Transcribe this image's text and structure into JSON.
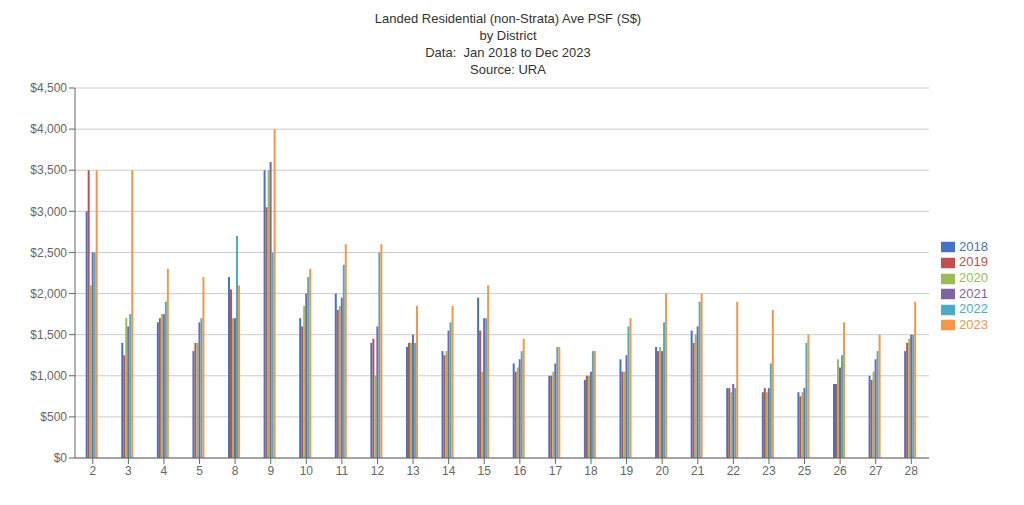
{
  "chart_data": {
    "type": "bar",
    "title": "Landed Residential (non-Strata) Ave PSF (S$)\nby District\nData:  Jan 2018 to Dec 2023\nSource: URA",
    "categories": [
      "2",
      "3",
      "4",
      "5",
      "8",
      "9",
      "10",
      "11",
      "12",
      "13",
      "14",
      "15",
      "16",
      "17",
      "18",
      "19",
      "20",
      "21",
      "22",
      "23",
      "25",
      "26",
      "27",
      "28"
    ],
    "series": [
      {
        "name": "2018",
        "color": "#4472c4",
        "values": [
          3000,
          1400,
          1650,
          1300,
          2200,
          3500,
          1700,
          2000,
          1400,
          1350,
          1300,
          1950,
          1150,
          1000,
          950,
          1200,
          1350,
          1550,
          850,
          800,
          800,
          900,
          1000,
          1300
        ]
      },
      {
        "name": "2019",
        "color": "#c0504d",
        "values": [
          3500,
          1250,
          1700,
          1400,
          2050,
          3050,
          1600,
          1800,
          1450,
          1400,
          1250,
          1550,
          1050,
          1000,
          1000,
          1050,
          1300,
          1400,
          850,
          850,
          750,
          900,
          950,
          1400
        ]
      },
      {
        "name": "2020",
        "color": "#9bbb59",
        "values": [
          2100,
          1700,
          1750,
          1400,
          1700,
          3500,
          1850,
          1850,
          1000,
          1400,
          1300,
          1050,
          1100,
          1050,
          1000,
          1050,
          1350,
          1500,
          800,
          800,
          800,
          1200,
          1050,
          1450
        ]
      },
      {
        "name": "2021",
        "color": "#8064a2",
        "values": [
          2500,
          1600,
          1750,
          1650,
          1700,
          3600,
          2000,
          1950,
          1600,
          1500,
          1550,
          1700,
          1200,
          1150,
          1050,
          1250,
          1300,
          1600,
          900,
          850,
          850,
          1100,
          1200,
          1500
        ]
      },
      {
        "name": "2022",
        "color": "#4bacc6",
        "values": [
          2500,
          1750,
          1900,
          1700,
          2700,
          2500,
          2200,
          2350,
          2500,
          1400,
          1650,
          1700,
          1300,
          1350,
          1300,
          1600,
          1650,
          1900,
          850,
          1150,
          1400,
          1250,
          1300,
          1500
        ]
      },
      {
        "name": "2023",
        "color": "#f79646",
        "values": [
          3500,
          3500,
          2300,
          2200,
          2100,
          4000,
          2300,
          2600,
          2600,
          1850,
          1850,
          2100,
          1450,
          1350,
          1300,
          1700,
          2000,
          2000,
          1900,
          1800,
          1500,
          1650,
          1500,
          1900
        ]
      }
    ],
    "ylim": [
      0,
      4500
    ],
    "yticks": [
      {
        "value": 0,
        "label": "$0"
      },
      {
        "value": 500,
        "label": "$500"
      },
      {
        "value": 1000,
        "label": "$1,000"
      },
      {
        "value": 1500,
        "label": "$1,500"
      },
      {
        "value": 2000,
        "label": "$2,000"
      },
      {
        "value": 2500,
        "label": "$2,500"
      },
      {
        "value": 3000,
        "label": "$3,000"
      },
      {
        "value": 3500,
        "label": "$3,500"
      },
      {
        "value": 4000,
        "label": "$4,000"
      },
      {
        "value": 4500,
        "label": "$4,500"
      }
    ],
    "grid": true,
    "legend": "right"
  }
}
